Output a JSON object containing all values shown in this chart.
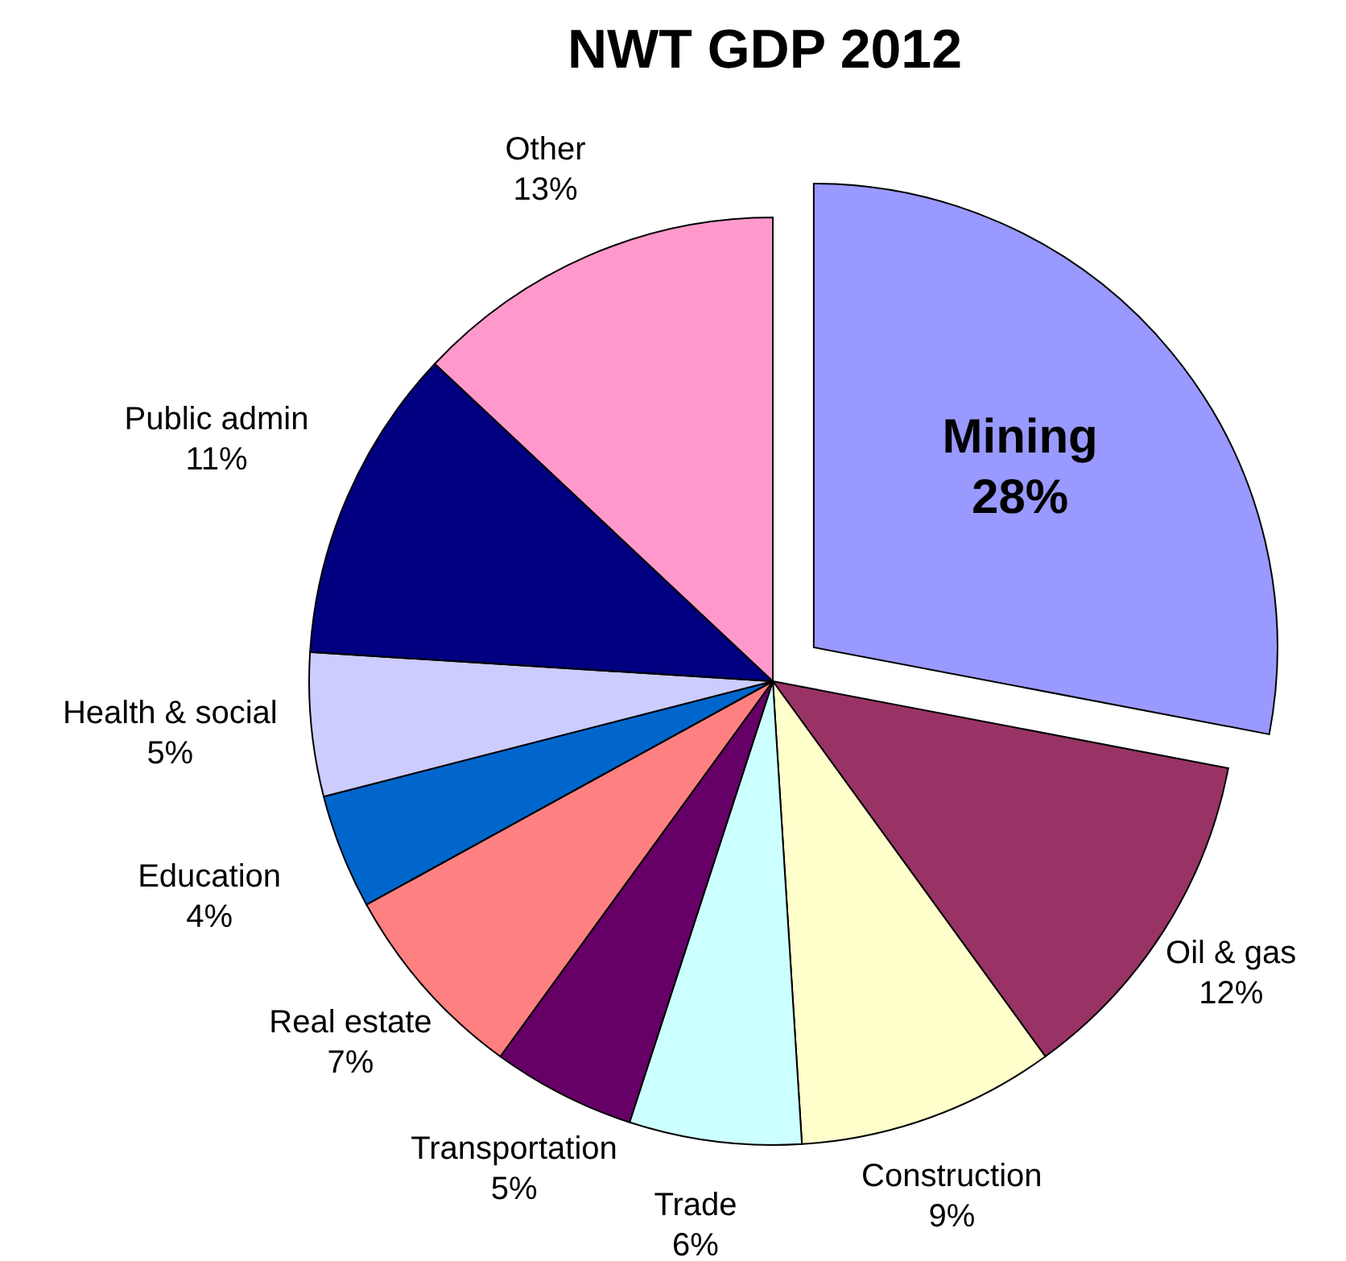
{
  "chart_data": {
    "type": "pie",
    "title": "NWT GDP 2012",
    "categories": [
      "Mining",
      "Oil & gas",
      "Construction",
      "Trade",
      "Transportation",
      "Real estate",
      "Education",
      "Health & social",
      "Public admin",
      "Other"
    ],
    "values": [
      28,
      12,
      9,
      6,
      5,
      7,
      4,
      5,
      11,
      13
    ],
    "value_labels": [
      "28%",
      "12%",
      "9%",
      "6%",
      "5%",
      "7%",
      "4%",
      "5%",
      "11%",
      "13%"
    ],
    "colors": [
      "#9999ff",
      "#993366",
      "#ffffcc",
      "#ccffff",
      "#660066",
      "#ff8080",
      "#0066cc",
      "#ccccff",
      "#000080",
      "#ff99cc"
    ],
    "legend": false
  }
}
